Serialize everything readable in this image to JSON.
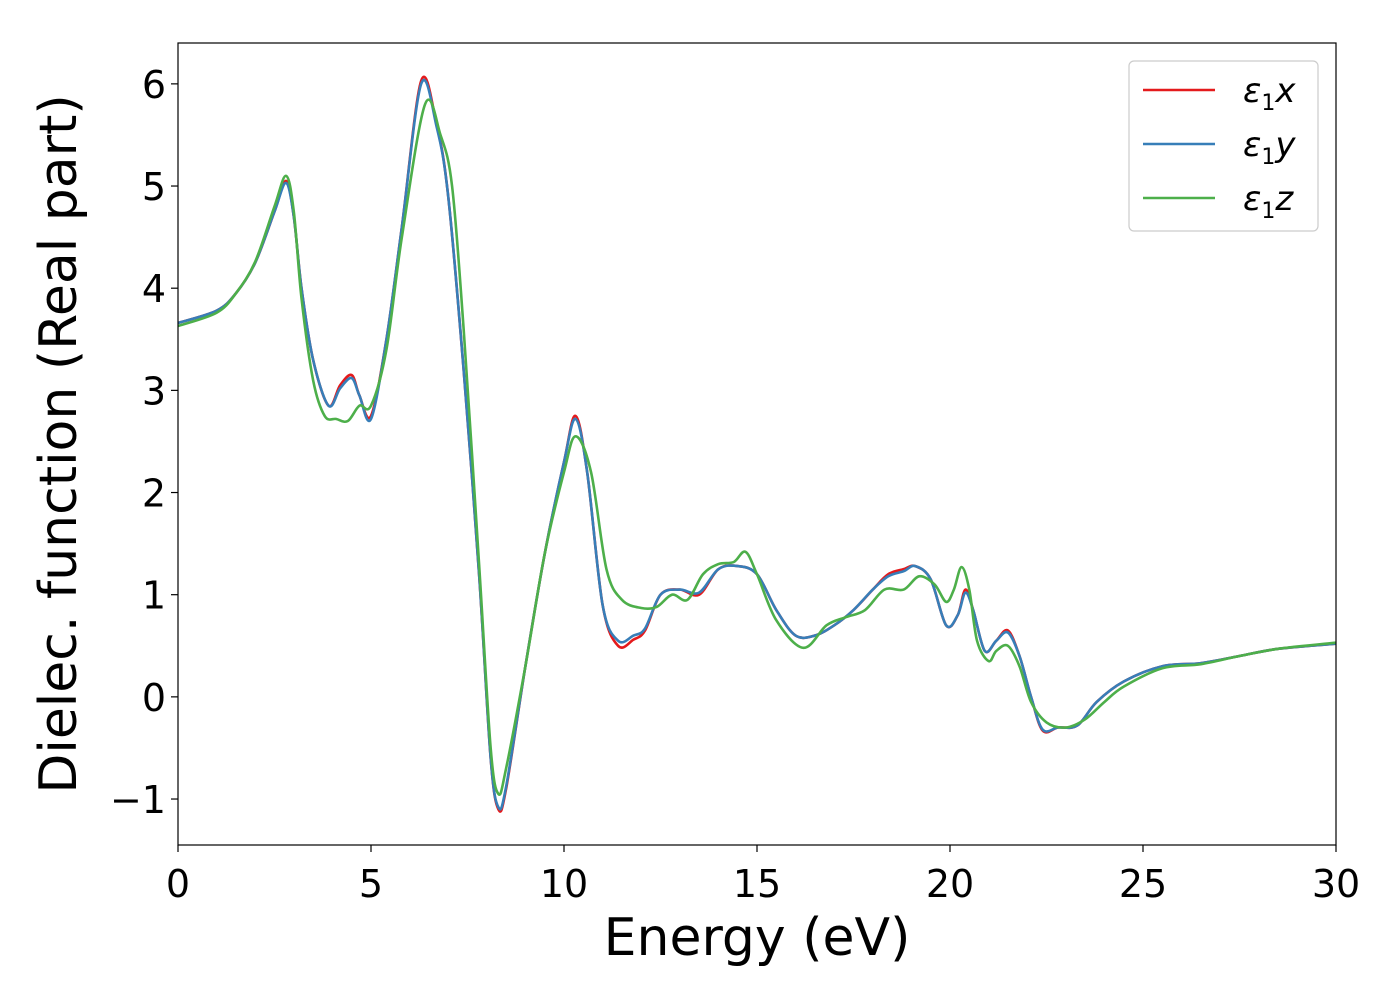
{
  "chart_data": {
    "type": "line",
    "title": "",
    "xlabel": "Energy (eV)",
    "ylabel": "Dielec. function (Real part)",
    "xlim": [
      0,
      30
    ],
    "ylim": [
      -1.45,
      6.4
    ],
    "xticks": [
      0,
      5,
      10,
      15,
      20,
      25,
      30
    ],
    "xtick_labels": [
      "0",
      "5",
      "10",
      "15",
      "20",
      "25",
      "30"
    ],
    "yticks": [
      -1,
      0,
      1,
      2,
      3,
      4,
      5,
      6
    ],
    "ytick_labels": [
      "−1",
      "0",
      "1",
      "2",
      "3",
      "4",
      "5",
      "6"
    ],
    "grid": false,
    "legend_position": "top-right",
    "series": [
      {
        "name": "ε₁x",
        "legend": {
          "base": "ε",
          "sub": "1",
          "var": "x"
        },
        "color": "#e41a1c",
        "x": [
          0,
          1,
          1.5,
          2,
          2.5,
          2.8,
          3.0,
          3.2,
          3.5,
          3.9,
          4.2,
          4.5,
          4.7,
          5.0,
          5.4,
          5.8,
          6.3,
          6.7,
          7.0,
          7.4,
          7.8,
          8.1,
          8.3,
          8.5,
          9.0,
          9.5,
          10.0,
          10.3,
          10.6,
          11.0,
          11.4,
          11.8,
          12.1,
          12.5,
          13.0,
          13.5,
          14.0,
          14.5,
          15.0,
          15.5,
          16.0,
          16.5,
          17.0,
          17.5,
          18.0,
          18.4,
          18.8,
          19.1,
          19.5,
          19.9,
          20.2,
          20.4,
          20.6,
          20.9,
          21.2,
          21.5,
          21.8,
          22.1,
          22.4,
          22.8,
          23.3,
          23.8,
          24.5,
          25.5,
          26.5,
          27.5,
          28.5,
          30
        ],
        "y": [
          3.66,
          3.78,
          3.95,
          4.25,
          4.75,
          5.05,
          4.7,
          4.0,
          3.3,
          2.85,
          3.05,
          3.15,
          2.95,
          2.75,
          3.5,
          4.6,
          6.03,
          5.6,
          4.9,
          3.2,
          1.2,
          -0.6,
          -1.1,
          -0.9,
          0.3,
          1.4,
          2.3,
          2.75,
          2.2,
          0.9,
          0.5,
          0.56,
          0.65,
          1.0,
          1.05,
          1.0,
          1.25,
          1.28,
          1.2,
          0.85,
          0.6,
          0.6,
          0.7,
          0.85,
          1.05,
          1.2,
          1.25,
          1.28,
          1.15,
          0.7,
          0.8,
          1.05,
          0.85,
          0.45,
          0.55,
          0.65,
          0.4,
          0.0,
          -0.33,
          -0.3,
          -0.28,
          -0.05,
          0.15,
          0.3,
          0.33,
          0.4,
          0.47,
          0.52
        ]
      },
      {
        "name": "ε₁y",
        "legend": {
          "base": "ε",
          "sub": "1",
          "var": "y"
        },
        "color": "#377eb8",
        "x": [
          0,
          1,
          1.5,
          2,
          2.5,
          2.8,
          3.0,
          3.2,
          3.5,
          3.9,
          4.2,
          4.5,
          4.7,
          5.0,
          5.4,
          5.8,
          6.3,
          6.7,
          7.0,
          7.4,
          7.8,
          8.1,
          8.3,
          8.5,
          9.0,
          9.5,
          10.0,
          10.3,
          10.6,
          11.0,
          11.4,
          11.8,
          12.1,
          12.5,
          13.0,
          13.5,
          14.0,
          14.5,
          15.0,
          15.5,
          16.0,
          16.5,
          17.0,
          17.5,
          18.0,
          18.4,
          18.8,
          19.1,
          19.5,
          19.9,
          20.2,
          20.4,
          20.6,
          20.9,
          21.2,
          21.5,
          21.8,
          22.1,
          22.4,
          22.8,
          23.3,
          23.8,
          24.5,
          25.5,
          26.5,
          27.5,
          28.5,
          30
        ],
        "y": [
          3.66,
          3.78,
          3.95,
          4.25,
          4.75,
          5.03,
          4.7,
          4.0,
          3.3,
          2.85,
          3.02,
          3.12,
          2.95,
          2.72,
          3.5,
          4.6,
          6.0,
          5.58,
          4.9,
          3.2,
          1.2,
          -0.6,
          -1.08,
          -0.88,
          0.3,
          1.4,
          2.3,
          2.72,
          2.2,
          0.9,
          0.55,
          0.6,
          0.67,
          1.0,
          1.05,
          1.02,
          1.25,
          1.28,
          1.2,
          0.85,
          0.6,
          0.6,
          0.7,
          0.85,
          1.05,
          1.18,
          1.23,
          1.28,
          1.15,
          0.7,
          0.8,
          1.02,
          0.85,
          0.45,
          0.55,
          0.63,
          0.4,
          0.0,
          -0.32,
          -0.3,
          -0.28,
          -0.05,
          0.15,
          0.3,
          0.33,
          0.4,
          0.47,
          0.52
        ]
      },
      {
        "name": "ε₁z",
        "legend": {
          "base": "ε",
          "sub": "1",
          "var": "z"
        },
        "color": "#4daf4a",
        "x": [
          0,
          1,
          1.5,
          2,
          2.5,
          2.8,
          3.0,
          3.2,
          3.5,
          3.8,
          4.1,
          4.4,
          4.7,
          5.0,
          5.4,
          5.8,
          6.4,
          6.8,
          7.1,
          7.4,
          7.8,
          8.1,
          8.3,
          8.5,
          9.0,
          9.5,
          10.0,
          10.3,
          10.7,
          11.1,
          11.5,
          12.0,
          12.4,
          12.8,
          13.2,
          13.6,
          14.0,
          14.4,
          14.7,
          15.0,
          15.5,
          16.2,
          16.8,
          17.3,
          17.8,
          18.3,
          18.8,
          19.2,
          19.6,
          19.9,
          20.1,
          20.3,
          20.5,
          20.7,
          21.0,
          21.2,
          21.5,
          21.8,
          22.1,
          22.5,
          23.0,
          23.5,
          24.0,
          24.5,
          25.5,
          26.5,
          27.5,
          28.5,
          30
        ],
        "y": [
          3.63,
          3.76,
          3.95,
          4.26,
          4.8,
          5.1,
          4.75,
          3.9,
          3.1,
          2.75,
          2.72,
          2.7,
          2.85,
          2.85,
          3.4,
          4.5,
          5.8,
          5.5,
          5.0,
          3.6,
          1.3,
          -0.5,
          -0.95,
          -0.7,
          0.3,
          1.4,
          2.2,
          2.55,
          2.2,
          1.25,
          0.95,
          0.87,
          0.88,
          1.0,
          0.95,
          1.2,
          1.3,
          1.32,
          1.42,
          1.2,
          0.75,
          0.48,
          0.7,
          0.78,
          0.85,
          1.05,
          1.05,
          1.18,
          1.1,
          0.93,
          1.05,
          1.27,
          1.05,
          0.55,
          0.35,
          0.45,
          0.5,
          0.3,
          -0.05,
          -0.25,
          -0.3,
          -0.22,
          -0.05,
          0.1,
          0.28,
          0.32,
          0.4,
          0.47,
          0.53
        ]
      }
    ]
  }
}
